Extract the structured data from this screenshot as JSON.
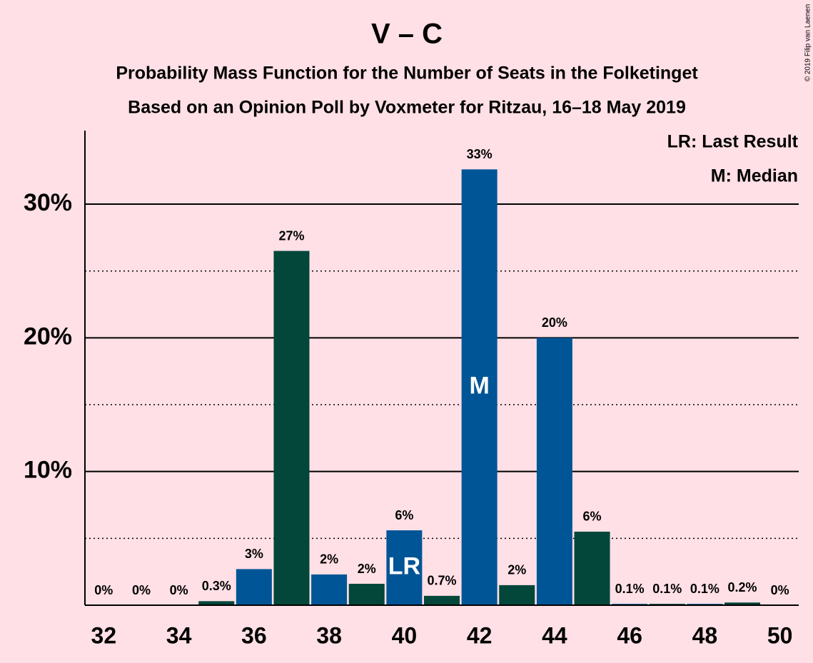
{
  "chart_data": {
    "type": "bar",
    "title": "V – C",
    "subtitle": [
      "Probability Mass Function for the Number of Seats in the Folketinget",
      "Based on an Opinion Poll by Voxmeter for Ritzau, 16–18 May 2019"
    ],
    "credit": "© 2019 Filip van Laenen",
    "legend_notes": [
      "LR: Last Result",
      "M: Median"
    ],
    "x": [
      32,
      33,
      34,
      35,
      36,
      37,
      38,
      39,
      40,
      41,
      42,
      43,
      44,
      45,
      46,
      47,
      48,
      49,
      50
    ],
    "values": [
      0,
      0,
      0,
      0.3,
      2.7,
      26.5,
      2.3,
      1.6,
      5.6,
      0.7,
      32.6,
      1.5,
      20.0,
      5.5,
      0.1,
      0.1,
      0.1,
      0.2,
      0
    ],
    "value_labels": [
      "0%",
      "0%",
      "0%",
      "0.3%",
      "3%",
      "27%",
      "2%",
      "2%",
      "6%",
      "0.7%",
      "33%",
      "2%",
      "20%",
      "6%",
      "0.1%",
      "0.1%",
      "0.1%",
      "0.2%",
      "0%"
    ],
    "colors": [
      "#005596",
      "#03463a",
      "#005596",
      "#03463a",
      "#005596",
      "#03463a",
      "#005596",
      "#03463a",
      "#005596",
      "#03463a",
      "#005596",
      "#03463a",
      "#005596",
      "#03463a",
      "#005596",
      "#03463a",
      "#005596",
      "#03463a",
      "#005596"
    ],
    "annotations": [
      {
        "x": 40,
        "text": "LR"
      },
      {
        "x": 42,
        "text": "M"
      }
    ],
    "xlim": [
      31.5,
      50.5
    ],
    "xticks": [
      32,
      34,
      36,
      38,
      40,
      42,
      44,
      46,
      48,
      50
    ],
    "ylim": [
      0,
      35.5
    ],
    "yticks": [
      {
        "value": 10,
        "label": "10%"
      },
      {
        "value": 20,
        "label": "20%"
      },
      {
        "value": 30,
        "label": "30%"
      }
    ],
    "minor_yticks": [
      5,
      15,
      25
    ],
    "grid": true
  }
}
